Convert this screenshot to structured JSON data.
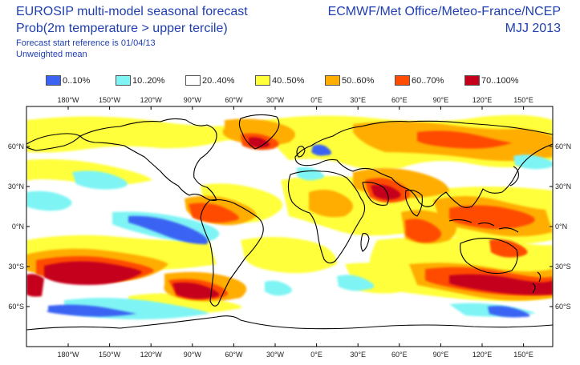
{
  "header": {
    "title_line1": "EUROSIP multi-model seasonal forecast",
    "title_line2": "Prob(2m temperature > upper tercile)",
    "subtitle_line1": "Forecast start reference is 01/04/13",
    "subtitle_line2": "Unweighted mean",
    "centres": "ECMWF/Met Office/Meteo-France/NCEP",
    "season": "MJJ 2013"
  },
  "legend": [
    {
      "label": "0..10%",
      "color": "#3b63f3"
    },
    {
      "label": "10..20%",
      "color": "#7ef4f4"
    },
    {
      "label": "20..40%",
      "color": "#ffffff"
    },
    {
      "label": "40..50%",
      "color": "#ffff3a"
    },
    {
      "label": "50..60%",
      "color": "#ffad00"
    },
    {
      "label": "60..70%",
      "color": "#ff4c00"
    },
    {
      "label": "70..100%",
      "color": "#c4001b"
    }
  ],
  "axes": {
    "lon_labels": [
      "180°W",
      "150°W",
      "120°W",
      "90°W",
      "60°W",
      "30°W",
      "0°E",
      "30°E",
      "60°E",
      "90°E",
      "120°E",
      "150°E"
    ],
    "lat_labels": [
      "60°N",
      "30°N",
      "0°N",
      "30°S",
      "60°S"
    ]
  }
}
